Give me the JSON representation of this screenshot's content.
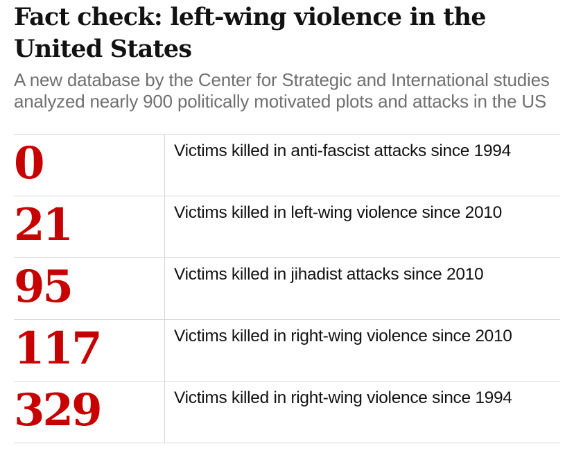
{
  "header": {
    "title": "Fact check: left-wing violence in the United States",
    "subtitle": "A new database by the Center for Strategic and International studies analyzed nearly 900 politically motivated plots and attacks in the US"
  },
  "stats": [
    {
      "value": "0",
      "description": "Victims killed in anti-fascist attacks since 1994"
    },
    {
      "value": "21",
      "description": "Victims killed in left-wing violence since 2010"
    },
    {
      "value": "95",
      "description": "Victims killed in jihadist attacks since 2010"
    },
    {
      "value": "117",
      "description": "Victims killed in right-wing violence since 2010"
    },
    {
      "value": "329",
      "description": "Victims killed in right-wing violence since 1994"
    }
  ],
  "colors": {
    "accent": "#c70000",
    "title": "#121212",
    "subtitle": "#707070",
    "divider": "#d8d8d8"
  }
}
